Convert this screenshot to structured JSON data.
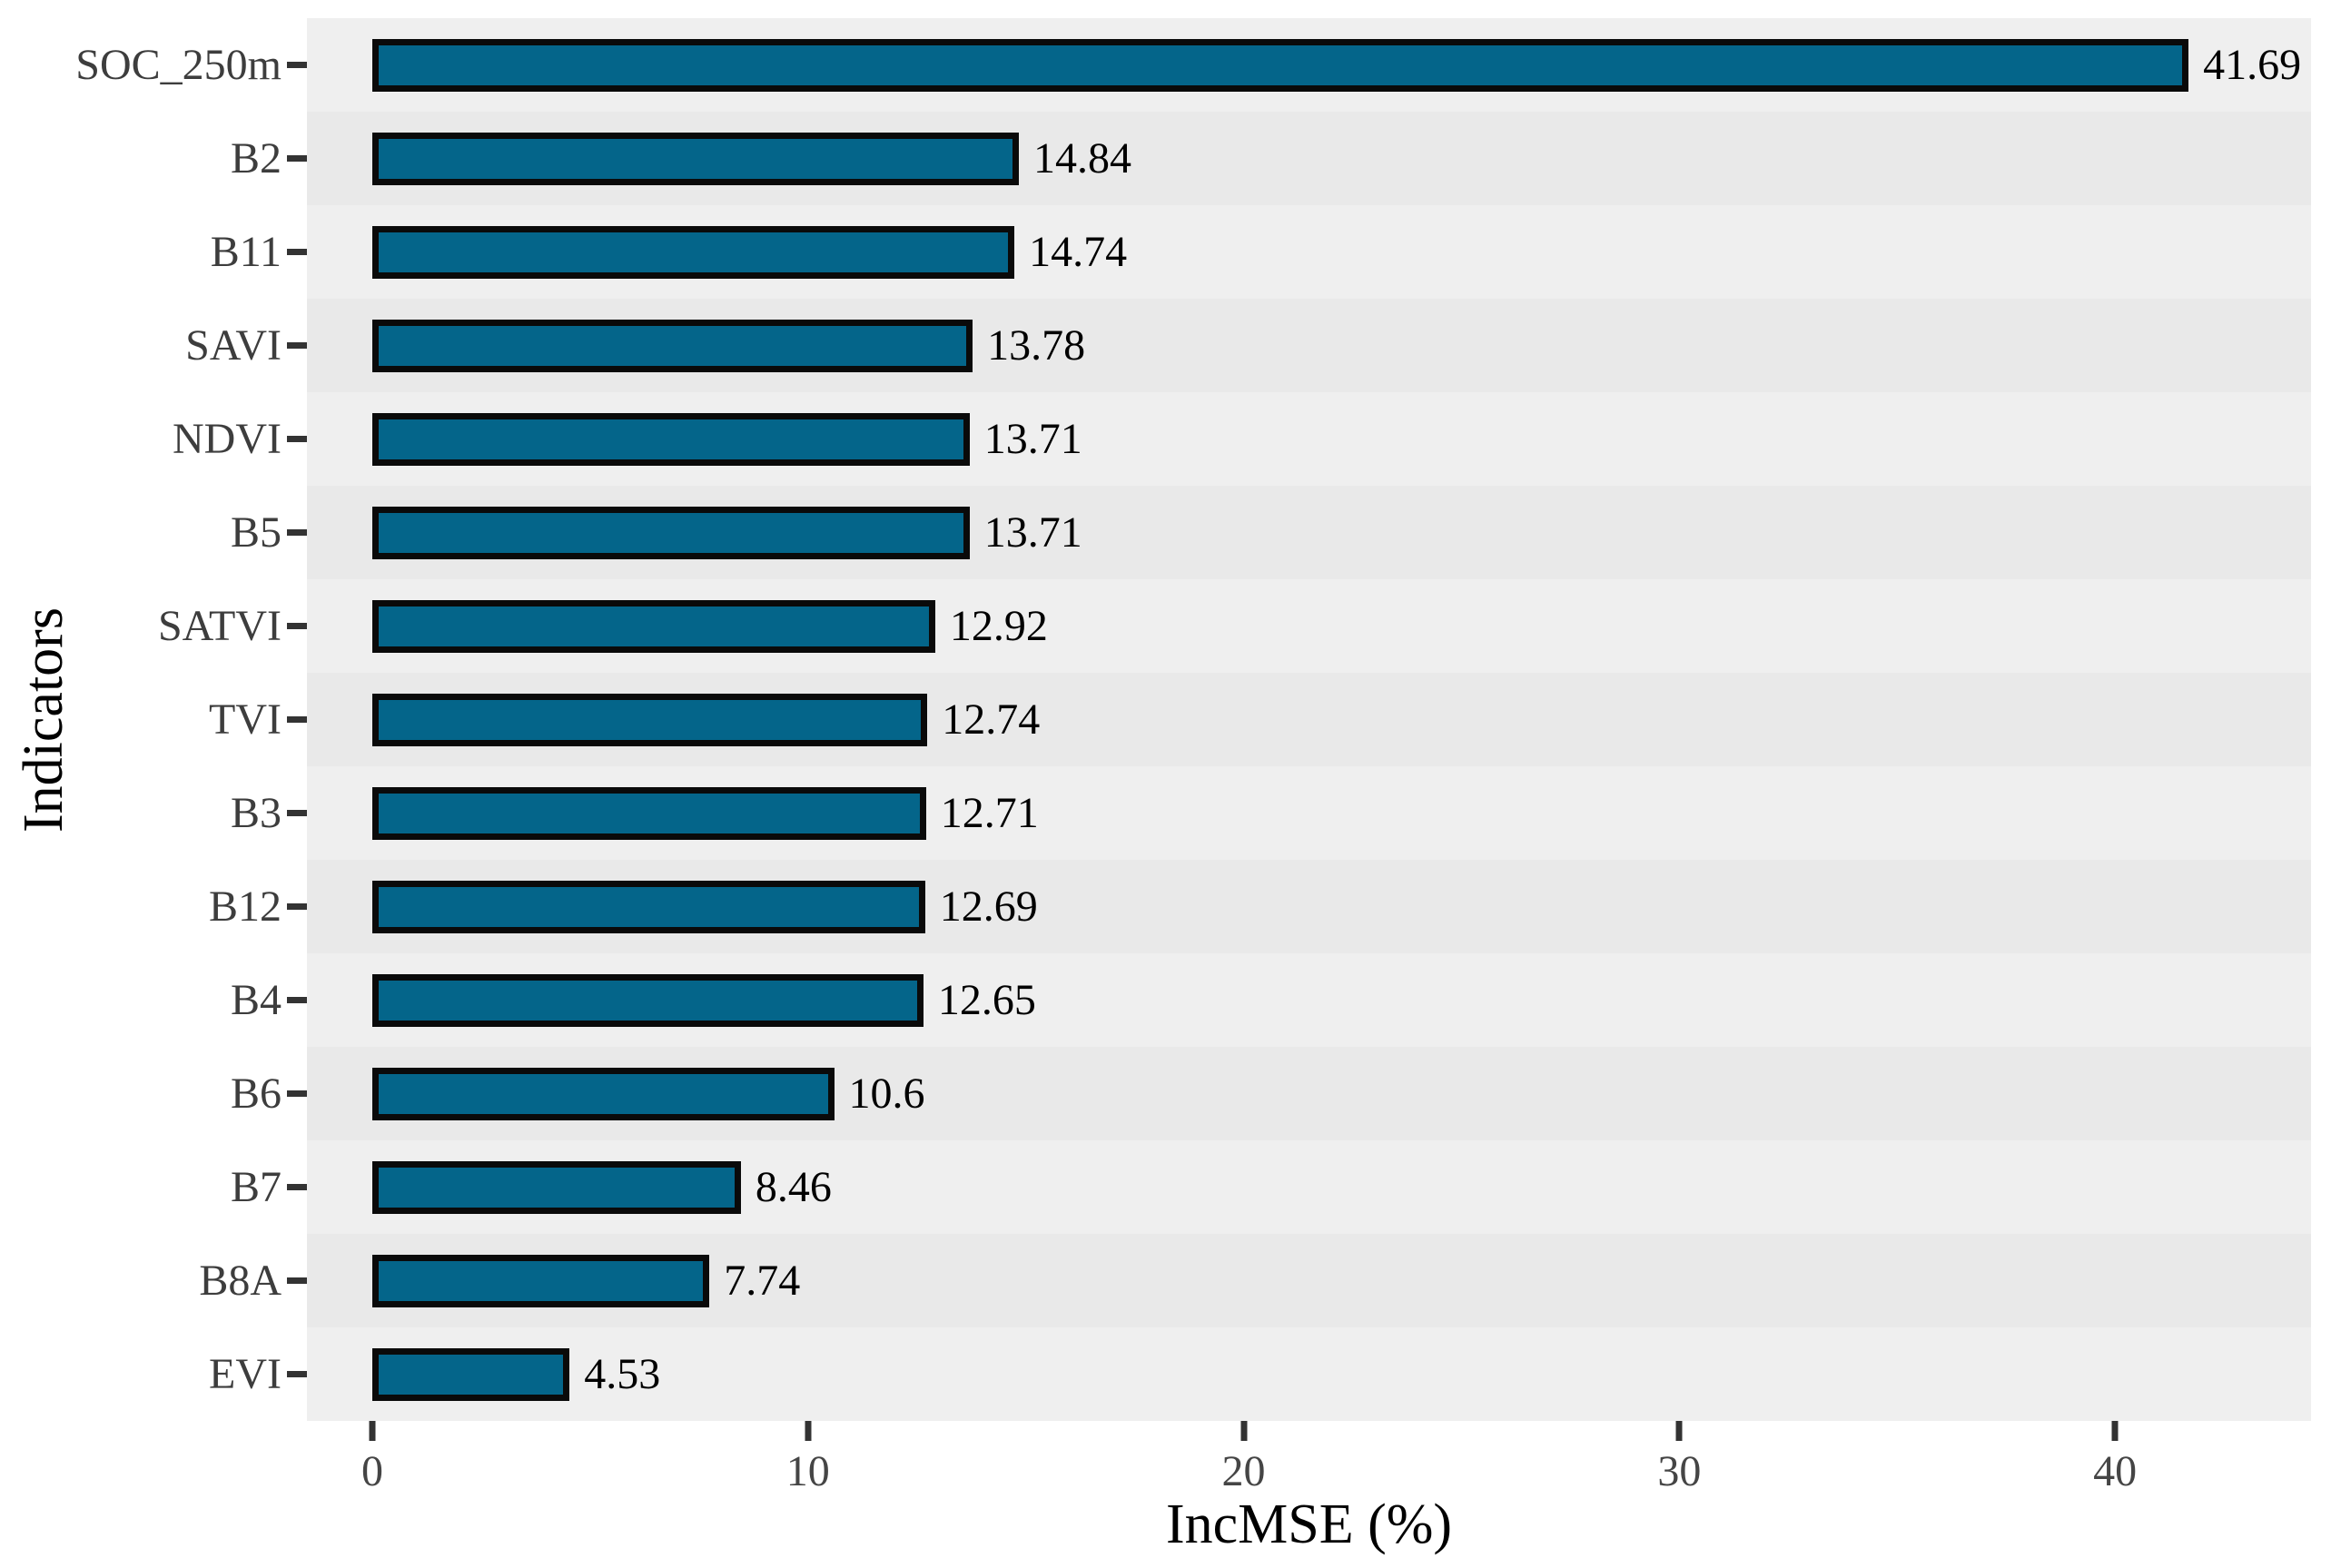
{
  "chart_data": {
    "type": "bar",
    "orientation": "horizontal",
    "xlabel": "IncMSE (%)",
    "ylabel": "Indicators",
    "categories": [
      "SOC_250m",
      "B2",
      "B11",
      "SAVI",
      "NDVI",
      "B5",
      "SATVI",
      "TVI",
      "B3",
      "B12",
      "B4",
      "B6",
      "B7",
      "B8A",
      "EVI"
    ],
    "values": [
      41.69,
      14.84,
      14.74,
      13.78,
      13.71,
      13.71,
      12.92,
      12.74,
      12.71,
      12.69,
      12.65,
      10.6,
      8.46,
      7.74,
      4.53
    ],
    "value_labels": [
      "41.69",
      "14.84",
      "14.74",
      "13.78",
      "13.71",
      "13.71",
      "12.92",
      "12.74",
      "12.71",
      "12.69",
      "12.65",
      "10.6",
      "8.46",
      "7.74",
      "4.53"
    ],
    "x_ticks": [
      0,
      10,
      20,
      30,
      40
    ],
    "x_tick_labels": [
      "0",
      "10",
      "20",
      "30",
      "40"
    ],
    "xlim_display": [
      -1.5,
      44.5
    ],
    "grid": "off",
    "legend": "none",
    "colors": {
      "bar_fill": "#04658a",
      "bar_border": "#0a0a0a",
      "panel_bg": "#efefef",
      "panel_stripe": "#e9e9e9",
      "tick_color": "#333333",
      "axis_text": "#454545",
      "label_text": "#3d3d3d",
      "value_text": "#000000",
      "title_text": "#000000",
      "background": "#ffffff"
    }
  }
}
